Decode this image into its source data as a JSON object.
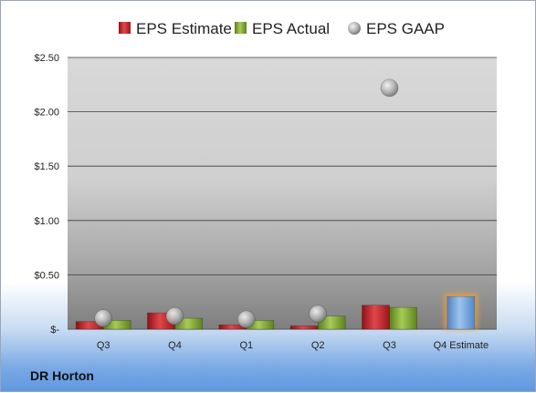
{
  "company": "DR Horton",
  "colors": {
    "estimate": "#c0262b",
    "actual": "#7faa2c",
    "gaap": "#a3a3a3",
    "q4_estimate": "#6f9fd8",
    "q4_glow": "#f2a03a"
  },
  "chart_data": {
    "type": "bar",
    "categories": [
      "Q3",
      "Q4",
      "Q1",
      "Q2",
      "Q3",
      "Q4 Estimate"
    ],
    "series": [
      {
        "name": "EPS Estimate",
        "values": [
          0.07,
          0.15,
          0.04,
          0.03,
          0.22,
          null
        ]
      },
      {
        "name": "EPS Actual",
        "values": [
          0.08,
          0.1,
          0.08,
          0.12,
          0.2,
          null
        ]
      },
      {
        "name": "EPS GAAP",
        "type": "scatter",
        "values": [
          0.1,
          0.12,
          0.09,
          0.14,
          2.22,
          null
        ]
      },
      {
        "name": "Q4 Estimate",
        "values": [
          null,
          null,
          null,
          null,
          null,
          0.3
        ]
      }
    ],
    "ylim": [
      0,
      2.5
    ],
    "yticks": [
      0,
      0.5,
      1.0,
      1.5,
      2.0,
      2.5
    ],
    "ytick_labels": [
      "$-",
      "$0.50",
      "$1.00",
      "$1.50",
      "$2.00",
      "$2.50"
    ],
    "legend": [
      "EPS Estimate",
      "EPS Actual",
      "EPS GAAP"
    ],
    "legend_position": "top",
    "grid": true
  }
}
